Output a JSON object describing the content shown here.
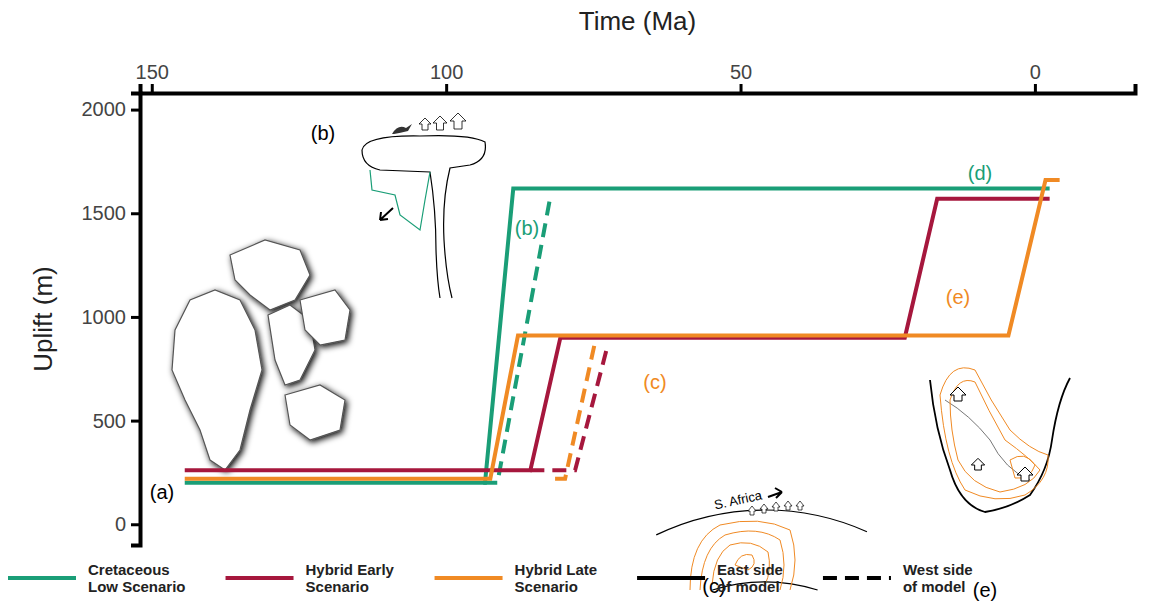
{
  "chart_data": {
    "type": "line",
    "x_label": "Time (Ma)",
    "y_label": "Uplift (m)",
    "xlim": [
      152,
      -17
    ],
    "xticks": [
      150,
      100,
      50,
      0
    ],
    "ylim": [
      -100,
      2080
    ],
    "yticks": [
      0,
      500,
      1000,
      1500,
      2000
    ],
    "legend": "bottom",
    "scenarios": [
      {
        "name": "Cretaceous Low Scenario",
        "color": "#1a9e77",
        "east": {
          "x": [
            144.4,
            93.4,
            88.6,
            -2.5
          ],
          "values": [
            200,
            200,
            1620,
            1620
          ]
        },
        "west": {
          "x": [
            93.7,
            91.3,
            82.3
          ],
          "values": [
            200,
            200,
            1580
          ]
        }
      },
      {
        "name": "Hybrid Early Scenario",
        "color": "#a6173d",
        "east": {
          "x": [
            144.4,
            85.7,
            80.6,
            22.1,
            16.6,
            -2.5
          ],
          "values": [
            260,
            260,
            900,
            900,
            1570,
            1570
          ]
        },
        "west": {
          "x": [
            85.7,
            78.1,
            72.5
          ],
          "values": [
            260,
            260,
            870
          ]
        }
      },
      {
        "name": "Hybrid Late Scenario",
        "color": "#f08a24",
        "east": {
          "x": [
            144.4,
            92.5,
            87.8,
            4.5,
            -1.8,
            -4.2
          ],
          "values": [
            220,
            220,
            910,
            910,
            1660,
            1660
          ]
        },
        "west": {
          "x": [
            81.5,
            79.8,
            74.7
          ],
          "values": [
            220,
            220,
            880
          ]
        }
      }
    ],
    "line_styles": [
      {
        "name": "East side of model",
        "line_style": "solid",
        "color": "#000000"
      },
      {
        "name": "West side of model",
        "line_style": "dashed",
        "color": "#000000"
      }
    ],
    "annotations": [
      {
        "text": "(b)",
        "color": "#1a9e77"
      },
      {
        "text": "(c)",
        "color": "#f08a24"
      },
      {
        "text": "(d)",
        "color": "#1a9e77"
      },
      {
        "text": "(e)",
        "color": "#f08a24"
      },
      {
        "text": "(a)",
        "color": "#000000"
      },
      {
        "text": "(b)",
        "color": "#000000"
      },
      {
        "text": "(c)",
        "color": "#000000"
      },
      {
        "text": "(e)",
        "color": "#000000"
      },
      {
        "text": "S. Africa",
        "color": "#000000"
      }
    ]
  }
}
